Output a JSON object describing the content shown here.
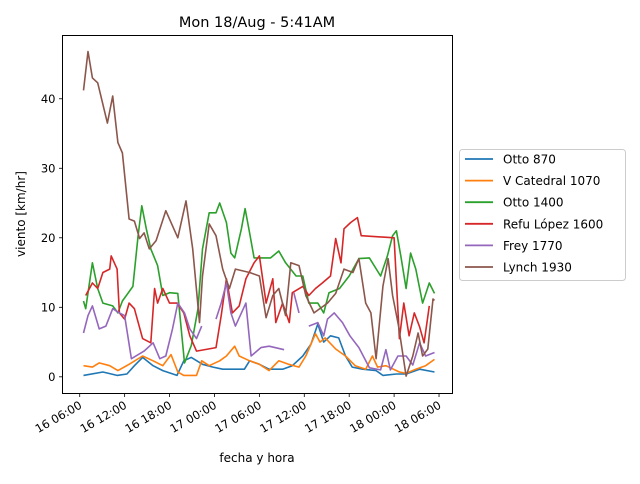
{
  "chart_data": {
    "type": "line",
    "title": "Mon 18/Aug - 5:41AM",
    "xlabel": "fecha y hora",
    "ylabel": "viento [km/hr]",
    "x_unit": "hours from 16/Aug 00:00",
    "xlim": [
      3.7,
      55.8
    ],
    "ylim": [
      -2.4,
      49.1
    ],
    "xticks": [
      6,
      12,
      18,
      24,
      30,
      36,
      42,
      48,
      54
    ],
    "xtick_labels": [
      "16 06:00",
      "16 12:00",
      "16 18:00",
      "17 00:00",
      "17 06:00",
      "17 12:00",
      "17 18:00",
      "18 00:00",
      "18 06:00"
    ],
    "yticks": [
      0,
      10,
      20,
      30,
      40
    ],
    "ytick_labels": [
      "0",
      "10",
      "20",
      "30",
      "40"
    ],
    "grid": false,
    "legend_position": "outside-right",
    "series": [
      {
        "name": "Otto 870",
        "color": "#1f77b4",
        "x": [
          6.5,
          9.1,
          11.0,
          12.3,
          13.3,
          14.4,
          15.8,
          17.1,
          19.0,
          19.9,
          20.9,
          22.4,
          23.8,
          25.1,
          26.4,
          28.0,
          28.7,
          30.0,
          31.3,
          33.1,
          34.4,
          35.8,
          36.9,
          37.8,
          38.6,
          39.5,
          40.6,
          41.5,
          42.4,
          43.8,
          45.6,
          46.5,
          48.3,
          49.6,
          51.4,
          53.4
        ],
        "y": [
          0.2,
          0.7,
          0.2,
          0.4,
          1.6,
          2.8,
          1.6,
          0.9,
          0.2,
          2.3,
          2.8,
          1.8,
          1.4,
          1.1,
          1.1,
          1.1,
          2.3,
          1.8,
          1.1,
          1.1,
          1.6,
          3.0,
          4.7,
          7.6,
          5.0,
          5.9,
          5.6,
          3.0,
          1.4,
          1.1,
          0.9,
          0.2,
          0.4,
          0.4,
          1.1,
          0.7
        ]
      },
      {
        "name": "V Catedral 1070",
        "color": "#ff7f0e",
        "x": [
          6.5,
          7.7,
          8.6,
          10.0,
          11.1,
          12.6,
          14.4,
          15.8,
          17.1,
          18.2,
          19.1,
          19.9,
          21.6,
          22.3,
          23.3,
          24.7,
          25.6,
          26.7,
          27.3,
          28.7,
          30.0,
          31.3,
          32.6,
          33.9,
          35.3,
          36.2,
          37.5,
          38.1,
          38.8,
          40.2,
          41.5,
          42.8,
          44.2,
          45.1,
          45.8,
          46.9,
          48.7,
          49.6,
          50.9,
          52.2,
          53.4
        ],
        "y": [
          1.6,
          1.4,
          2.0,
          1.6,
          0.9,
          1.8,
          3.0,
          2.3,
          1.6,
          3.2,
          0.7,
          0.2,
          0.2,
          2.3,
          1.6,
          2.3,
          3.0,
          4.4,
          3.0,
          2.3,
          1.8,
          0.9,
          2.3,
          1.8,
          1.4,
          3.0,
          6.2,
          5.0,
          5.6,
          4.0,
          3.0,
          1.6,
          1.1,
          3.0,
          1.4,
          1.6,
          0.7,
          0.5,
          1.1,
          1.6,
          2.5
        ]
      },
      {
        "name": "Otto 1400",
        "color": "#2ca02c",
        "x": [
          6.5,
          6.8,
          7.7,
          8.4,
          9.1,
          10.4,
          11.1,
          11.7,
          13.1,
          13.8,
          14.3,
          14.9,
          15.5,
          16.4,
          17.1,
          18.0,
          19.1,
          20.0,
          20.9,
          21.8,
          22.4,
          23.3,
          24.2,
          24.7,
          25.6,
          26.2,
          26.7,
          27.6,
          28.1,
          28.7,
          29.3,
          30.4,
          31.5,
          32.6,
          33.5,
          34.9,
          35.8,
          36.6,
          37.8,
          38.6,
          39.3,
          40.7,
          42.0,
          43.3,
          44.7,
          46.2,
          47.1,
          47.8,
          48.3,
          48.9,
          49.6,
          50.2,
          50.9,
          51.8,
          52.7,
          53.4
        ],
        "y": [
          10.9,
          9.8,
          16.4,
          12.7,
          10.6,
          10.2,
          9.2,
          10.9,
          13.0,
          20.3,
          24.6,
          21.3,
          18.4,
          16.0,
          11.7,
          12.1,
          12.0,
          2.0,
          4.5,
          9.8,
          18.4,
          23.6,
          23.6,
          25.0,
          22.2,
          17.8,
          17.1,
          21.3,
          24.2,
          20.7,
          17.1,
          17.1,
          17.1,
          18.1,
          16.4,
          14.5,
          14.5,
          10.6,
          10.6,
          9.2,
          12.1,
          12.7,
          14.5,
          17.0,
          17.1,
          14.5,
          17.4,
          20.3,
          21.0,
          17.4,
          12.7,
          17.8,
          15.5,
          10.6,
          13.5,
          12.0
        ]
      },
      {
        "name": "Refu López 1600",
        "color": "#d62728",
        "x": [
          6.8,
          7.7,
          8.4,
          9.1,
          10.0,
          10.2,
          11.0,
          11.3,
          12.0,
          12.6,
          13.3,
          14.4,
          15.5,
          16.0,
          16.4,
          17.1,
          18.0,
          19.0,
          19.9,
          20.7,
          21.6,
          24.2,
          24.9,
          25.6,
          26.4,
          27.3,
          28.2,
          29.3,
          30.0,
          30.9,
          31.8,
          32.2,
          33.1,
          34.0,
          34.4,
          35.8,
          36.6,
          37.5,
          38.4,
          39.5,
          40.2,
          40.9,
          41.3,
          42.2,
          43.1,
          43.6,
          48.0,
          48.7,
          49.3,
          50.0,
          50.7,
          51.4,
          52.0,
          52.7
        ],
        "y": [
          11.7,
          13.5,
          12.7,
          15.0,
          15.5,
          17.4,
          15.5,
          9.2,
          8.3,
          10.6,
          9.8,
          5.5,
          4.9,
          12.7,
          10.6,
          12.7,
          10.6,
          10.6,
          9.2,
          5.9,
          3.7,
          4.2,
          8.8,
          14.1,
          9.2,
          10.2,
          14.1,
          16.4,
          17.4,
          10.6,
          14.1,
          7.8,
          10.6,
          7.8,
          12.1,
          13.0,
          11.7,
          12.7,
          13.5,
          14.5,
          19.9,
          16.4,
          21.3,
          22.2,
          22.9,
          20.3,
          20.0,
          5.5,
          10.6,
          5.9,
          9.2,
          7.2,
          4.9,
          10.2
        ]
      },
      {
        "name": "Frey 1770",
        "color": "#9467bd",
        "x": [
          6.5,
          7.1,
          7.7,
          8.6,
          9.5,
          10.4,
          11.3,
          12.0,
          12.9,
          14.6,
          15.8,
          16.7,
          17.5,
          18.4,
          19.1,
          20.0,
          20.7,
          21.6,
          22.3,
          null,
          24.2,
          24.9,
          25.6,
          26.2,
          26.8,
          27.6,
          28.2,
          28.9,
          30.2,
          31.3,
          33.3,
          null,
          34.6,
          35.3,
          null,
          36.6,
          37.8,
          38.6,
          39.1,
          40.0,
          41.1,
          42.1,
          43.3,
          44.7,
          46.2,
          46.9,
          47.5,
          48.5,
          49.6,
          50.5,
          51.4,
          52.2,
          53.4
        ],
        "y": [
          6.3,
          8.8,
          10.2,
          6.9,
          7.3,
          9.8,
          9.2,
          8.8,
          2.6,
          3.7,
          4.9,
          2.6,
          3.0,
          6.9,
          10.6,
          9.2,
          6.9,
          5.5,
          7.3,
          null,
          8.3,
          10.6,
          13.5,
          9.2,
          7.3,
          9.2,
          10.6,
          3.0,
          4.2,
          4.4,
          3.9,
          null,
          12.1,
          9.2,
          null,
          7.3,
          7.8,
          5.9,
          8.3,
          9.2,
          7.8,
          5.9,
          4.2,
          1.3,
          1.0,
          3.9,
          1.0,
          3.0,
          3.0,
          1.7,
          4.9,
          3.0,
          3.5
        ]
      },
      {
        "name": "Lynch 1930",
        "color": "#8c564b",
        "x": [
          6.5,
          7.1,
          7.7,
          8.4,
          9.7,
          10.4,
          11.1,
          11.7,
          12.6,
          13.3,
          14.0,
          14.6,
          15.3,
          16.2,
          17.5,
          19.1,
          20.2,
          21.1,
          22.0,
          22.4,
          23.3,
          24.2,
          25.1,
          26.0,
          26.8,
          28.7,
          30.0,
          30.9,
          31.8,
          32.6,
          33.5,
          34.2,
          35.3,
          36.2,
          37.3,
          39.1,
          40.2,
          41.3,
          42.5,
          43.3,
          44.2,
          44.9,
          45.6,
          46.5,
          47.2,
          47.8,
          48.6,
          49.6,
          50.5,
          51.2,
          51.8,
          52.5,
          53.2,
          53.4
        ],
        "y": [
          41.2,
          46.8,
          43.0,
          42.3,
          36.5,
          40.4,
          33.7,
          32.2,
          22.7,
          22.4,
          19.9,
          20.7,
          18.4,
          19.6,
          23.9,
          20.0,
          25.3,
          18.4,
          7.8,
          14.5,
          22.0,
          20.3,
          15.5,
          12.7,
          15.5,
          15.0,
          14.5,
          8.5,
          11.7,
          12.7,
          8.8,
          16.4,
          16.0,
          11.7,
          9.2,
          10.6,
          12.0,
          15.5,
          15.0,
          17.0,
          10.6,
          9.2,
          2.6,
          13.0,
          17.0,
          11.7,
          7.3,
          0.1,
          3.0,
          6.3,
          3.0,
          4.0,
          11.2,
          11.0
        ]
      }
    ]
  }
}
